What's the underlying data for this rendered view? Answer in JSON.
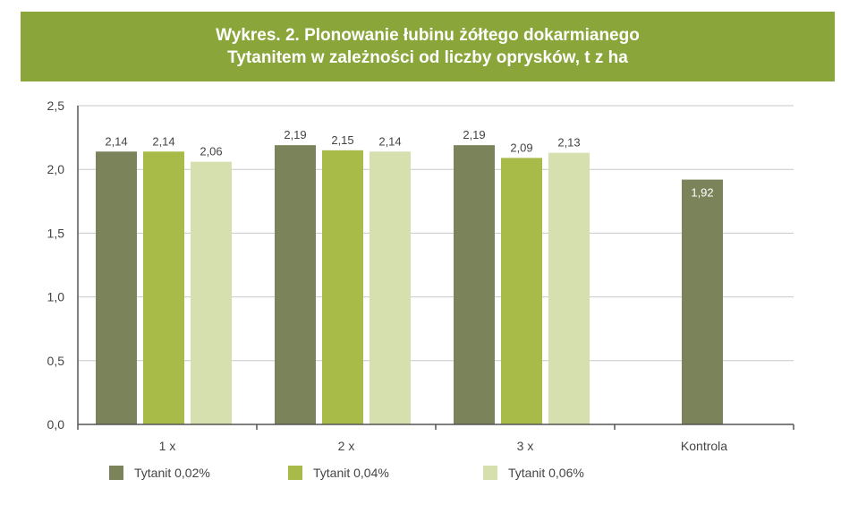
{
  "title": {
    "line1": "Wykres. 2. Plonowanie łubinu żółtego dokarmianego",
    "line2": "Tytanitem w zależności od liczby oprysków, t z ha"
  },
  "chart_data": {
    "type": "bar",
    "categories": [
      "1 x",
      "2 x",
      "3 x",
      "Kontrola"
    ],
    "series": [
      {
        "name": "Tytanit 0,02%",
        "color": "#7a8359",
        "values": [
          2.14,
          2.19,
          2.19,
          1.92
        ]
      },
      {
        "name": "Tytanit 0,04%",
        "color": "#a8ba48",
        "values": [
          2.14,
          2.15,
          2.09,
          null
        ]
      },
      {
        "name": "Tytanit 0,06%",
        "color": "#d6dfae",
        "values": [
          2.06,
          2.14,
          2.13,
          null
        ]
      }
    ],
    "value_labels": [
      [
        "2,14",
        "2,19",
        "2,19",
        "1,92"
      ],
      [
        "2,14",
        "2,15",
        "2,09",
        ""
      ],
      [
        "2,06",
        "2,14",
        "2,13",
        ""
      ]
    ],
    "ylim": [
      0,
      2.5
    ],
    "yticks": [
      0,
      0.5,
      1.0,
      1.5,
      2.0,
      2.5
    ],
    "ytick_labels": [
      "0,0",
      "0,5",
      "1,0",
      "1,5",
      "2,0",
      "2,5"
    ],
    "grid": true,
    "legend_position": "bottom"
  }
}
